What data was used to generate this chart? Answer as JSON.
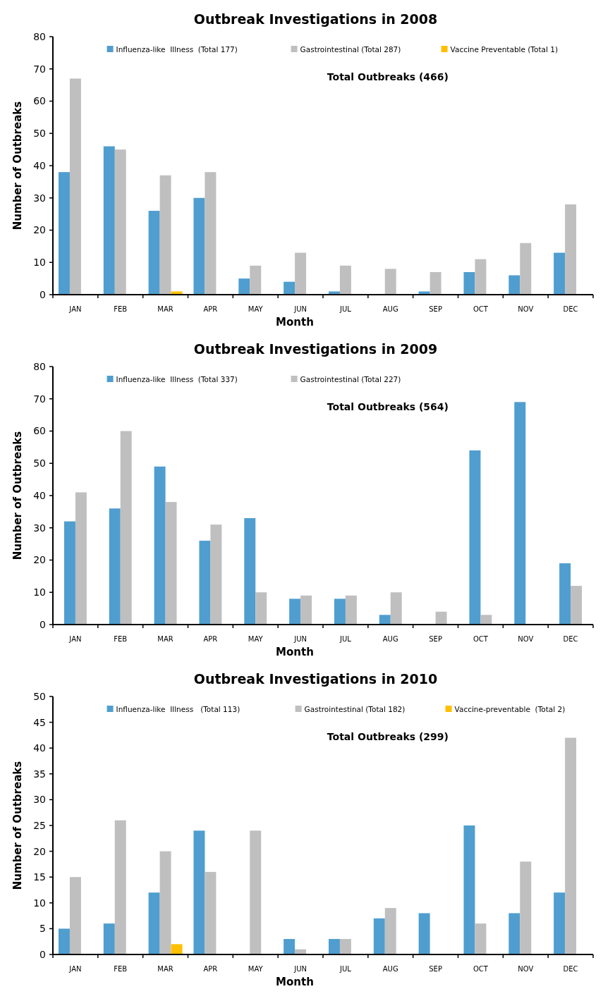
{
  "chart_data": [
    {
      "type": "bar",
      "title": "Outbreak Investigations in 2008",
      "xlabel": "Month",
      "ylabel": "Number of Outbreaks",
      "categories": [
        "JAN",
        "FEB",
        "MAR",
        "APR",
        "MAY",
        "JUN",
        "JUL",
        "AUG",
        "SEP",
        "OCT",
        "NOV",
        "DEC"
      ],
      "series": [
        {
          "name": "Influenza-like  Illness  (Total 177)",
          "color": "#4f9ecf",
          "values": [
            38,
            46,
            26,
            30,
            5,
            4,
            1,
            0,
            1,
            7,
            6,
            13
          ]
        },
        {
          "name": "Gastrointestinal (Total 287)",
          "color": "#bfbfbf",
          "values": [
            67,
            45,
            37,
            38,
            9,
            13,
            9,
            8,
            7,
            11,
            16,
            28
          ]
        },
        {
          "name": "Vaccine Preventable (Total 1)",
          "color": "#ffc000",
          "values": [
            0,
            0,
            1,
            0,
            0,
            0,
            0,
            0,
            0,
            0,
            0,
            0
          ]
        }
      ],
      "ylim": [
        0,
        80
      ],
      "yticks": [
        0,
        10,
        20,
        30,
        40,
        50,
        60,
        70,
        80
      ],
      "grid": false,
      "legend": "top",
      "annotations": [
        "Total Outbreaks (466)"
      ]
    },
    {
      "type": "bar",
      "title": "Outbreak Investigations in 2009",
      "xlabel": "Month",
      "ylabel": "Number of Outbreaks",
      "categories": [
        "JAN",
        "FEB",
        "MAR",
        "APR",
        "MAY",
        "JUN",
        "JUL",
        "AUG",
        "SEP",
        "OCT",
        "NOV",
        "DEC"
      ],
      "series": [
        {
          "name": "Influenza-like  Illness  (Total 337)",
          "color": "#4f9ecf",
          "values": [
            32,
            36,
            49,
            26,
            33,
            8,
            8,
            3,
            0,
            54,
            69,
            19
          ]
        },
        {
          "name": "Gastrointestinal (Total 227)",
          "color": "#bfbfbf",
          "values": [
            41,
            60,
            38,
            31,
            10,
            9,
            9,
            10,
            4,
            3,
            0,
            12
          ]
        }
      ],
      "ylim": [
        0,
        80
      ],
      "yticks": [
        0,
        10,
        20,
        30,
        40,
        50,
        60,
        70,
        80
      ],
      "grid": false,
      "legend": "top",
      "annotations": [
        "Total Outbreaks (564)"
      ]
    },
    {
      "type": "bar",
      "title": "Outbreak Investigations in 2010",
      "xlabel": "Month",
      "ylabel": "Number of Outbreaks",
      "categories": [
        "JAN",
        "FEB",
        "MAR",
        "APR",
        "MAY",
        "JUN",
        "JUL",
        "AUG",
        "SEP",
        "OCT",
        "NOV",
        "DEC"
      ],
      "series": [
        {
          "name": "Influenza-like  Illness   (Total 113)",
          "color": "#4f9ecf",
          "values": [
            5,
            6,
            12,
            24,
            0,
            3,
            3,
            7,
            8,
            25,
            8,
            12
          ]
        },
        {
          "name": "Gastrointestinal (Total 182)",
          "color": "#bfbfbf",
          "values": [
            15,
            26,
            20,
            16,
            24,
            1,
            3,
            9,
            0,
            6,
            18,
            42
          ]
        },
        {
          "name": "Vaccine-preventable  (Total 2)",
          "color": "#ffc000",
          "values": [
            0,
            0,
            2,
            0,
            0,
            0,
            0,
            0,
            0,
            0,
            0,
            0
          ]
        }
      ],
      "ylim": [
        0,
        50
      ],
      "yticks": [
        0,
        5,
        10,
        15,
        20,
        25,
        30,
        35,
        40,
        45,
        50
      ],
      "grid": false,
      "legend": "top",
      "annotations": [
        "Total Outbreaks (299)"
      ]
    }
  ]
}
